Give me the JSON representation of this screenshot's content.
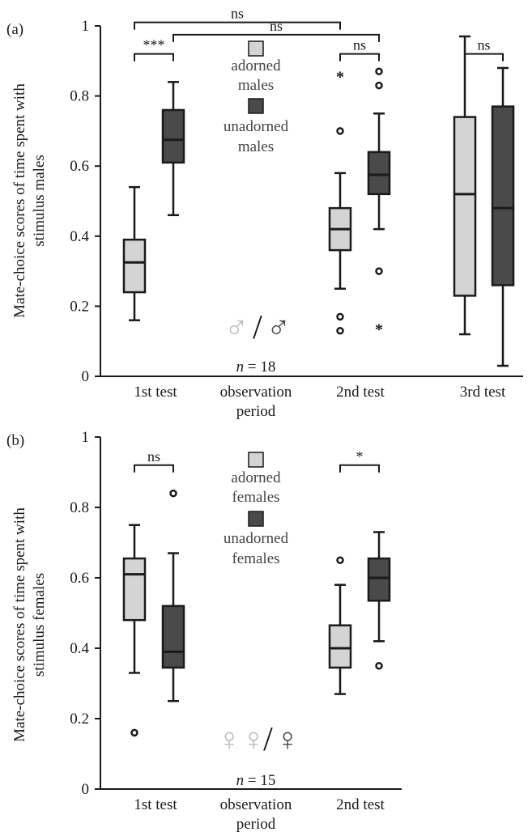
{
  "colors": {
    "light": "#d4d4d4",
    "dark": "#4a4a4a",
    "axis": "#1a1a1a",
    "symbol_light": "#bdbdbd",
    "symbol_dark": "#4a4a4a"
  },
  "chart_data": [
    {
      "panel_label": "(a)",
      "type": "box",
      "ylabel_line1": "Mate-choice scores of time spent with",
      "ylabel_line2": "stimulus males",
      "ylim": [
        0,
        1
      ],
      "yticks": [
        "0",
        "0.2",
        "0.4",
        "0.6",
        "0.8",
        "1"
      ],
      "categories": [
        "1st test",
        "2nd test",
        "3rd test"
      ],
      "gap_label_line1": "observation",
      "gap_label_line2": "period",
      "legend": [
        "adorned males",
        "unadorned males"
      ],
      "legend_lines": [
        [
          "adorned",
          "males"
        ],
        [
          "unadorned",
          "males"
        ]
      ],
      "symbol": {
        "left": "♂",
        "sep": "/",
        "right": "♂"
      },
      "n_prefix": "n",
      "n_suffix": " = 18",
      "series": [
        {
          "name": "adorned males",
          "stats": [
            {
              "min": 0.16,
              "q1": 0.24,
              "median": 0.325,
              "q3": 0.39,
              "max": 0.54,
              "outliers": [],
              "extremes": []
            },
            {
              "min": 0.25,
              "q1": 0.36,
              "median": 0.42,
              "q3": 0.48,
              "max": 0.58,
              "outliers": [
                0.7,
                0.17,
                0.13
              ],
              "extremes": [
                0.86
              ]
            },
            {
              "min": 0.12,
              "q1": 0.23,
              "median": 0.52,
              "q3": 0.74,
              "max": 0.97,
              "outliers": [],
              "extremes": []
            }
          ]
        },
        {
          "name": "unadorned males",
          "stats": [
            {
              "min": 0.46,
              "q1": 0.61,
              "median": 0.675,
              "q3": 0.76,
              "max": 0.84,
              "outliers": [],
              "extremes": []
            },
            {
              "min": 0.42,
              "q1": 0.52,
              "median": 0.575,
              "q3": 0.64,
              "max": 0.75,
              "outliers": [
                0.87,
                0.83,
                0.3
              ],
              "extremes": [
                0.14
              ]
            },
            {
              "min": 0.03,
              "q1": 0.26,
              "median": 0.48,
              "q3": 0.77,
              "max": 0.88,
              "outliers": [],
              "extremes": []
            }
          ]
        }
      ],
      "significance": [
        {
          "text": "ns",
          "from": [
            0,
            0
          ],
          "to": [
            1,
            0
          ],
          "y": 1.01
        },
        {
          "text": "***",
          "from": [
            0,
            0
          ],
          "to": [
            0,
            1
          ],
          "y": 0.92
        },
        {
          "text": "ns",
          "from": [
            0,
            1
          ],
          "to": [
            1,
            1
          ],
          "y": 0.975
        },
        {
          "text": "ns",
          "from": [
            1,
            0
          ],
          "to": [
            1,
            1
          ],
          "y": 0.92
        },
        {
          "text": "ns",
          "from": [
            2,
            0
          ],
          "to": [
            2,
            1
          ],
          "y": 0.92
        }
      ]
    },
    {
      "panel_label": "(b)",
      "type": "box",
      "ylabel_line1": "Mate-choice scores of time spent with",
      "ylabel_line2": "stimulus females",
      "ylim": [
        0,
        1
      ],
      "yticks": [
        "0",
        "0.2",
        "0.4",
        "0.6",
        "0.8",
        "1"
      ],
      "categories": [
        "1st test",
        "2nd test"
      ],
      "gap_label_line1": "observation",
      "gap_label_line2": "period",
      "legend": [
        "adorned females",
        "unadorned females"
      ],
      "legend_lines": [
        [
          "adorned",
          "females"
        ],
        [
          "unadorned",
          "females"
        ]
      ],
      "symbol": {
        "left": "♀♀",
        "sep": "/",
        "right": "♀"
      },
      "n_prefix": "n",
      "n_suffix": " = 15",
      "series": [
        {
          "name": "adorned females",
          "stats": [
            {
              "min": 0.33,
              "q1": 0.48,
              "median": 0.61,
              "q3": 0.655,
              "max": 0.75,
              "outliers": [
                0.16
              ],
              "extremes": []
            },
            {
              "min": 0.27,
              "q1": 0.345,
              "median": 0.4,
              "q3": 0.465,
              "max": 0.58,
              "outliers": [
                0.65
              ],
              "extremes": []
            }
          ]
        },
        {
          "name": "unadorned females",
          "stats": [
            {
              "min": 0.25,
              "q1": 0.345,
              "median": 0.39,
              "q3": 0.52,
              "max": 0.67,
              "outliers": [
                0.84
              ],
              "extremes": []
            },
            {
              "min": 0.42,
              "q1": 0.535,
              "median": 0.6,
              "q3": 0.655,
              "max": 0.73,
              "outliers": [
                0.35
              ],
              "extremes": []
            }
          ]
        }
      ],
      "significance": [
        {
          "text": "ns",
          "from": [
            0,
            0
          ],
          "to": [
            0,
            1
          ],
          "y": 0.92
        },
        {
          "text": "*",
          "from": [
            1,
            0
          ],
          "to": [
            1,
            1
          ],
          "y": 0.92
        }
      ]
    }
  ]
}
